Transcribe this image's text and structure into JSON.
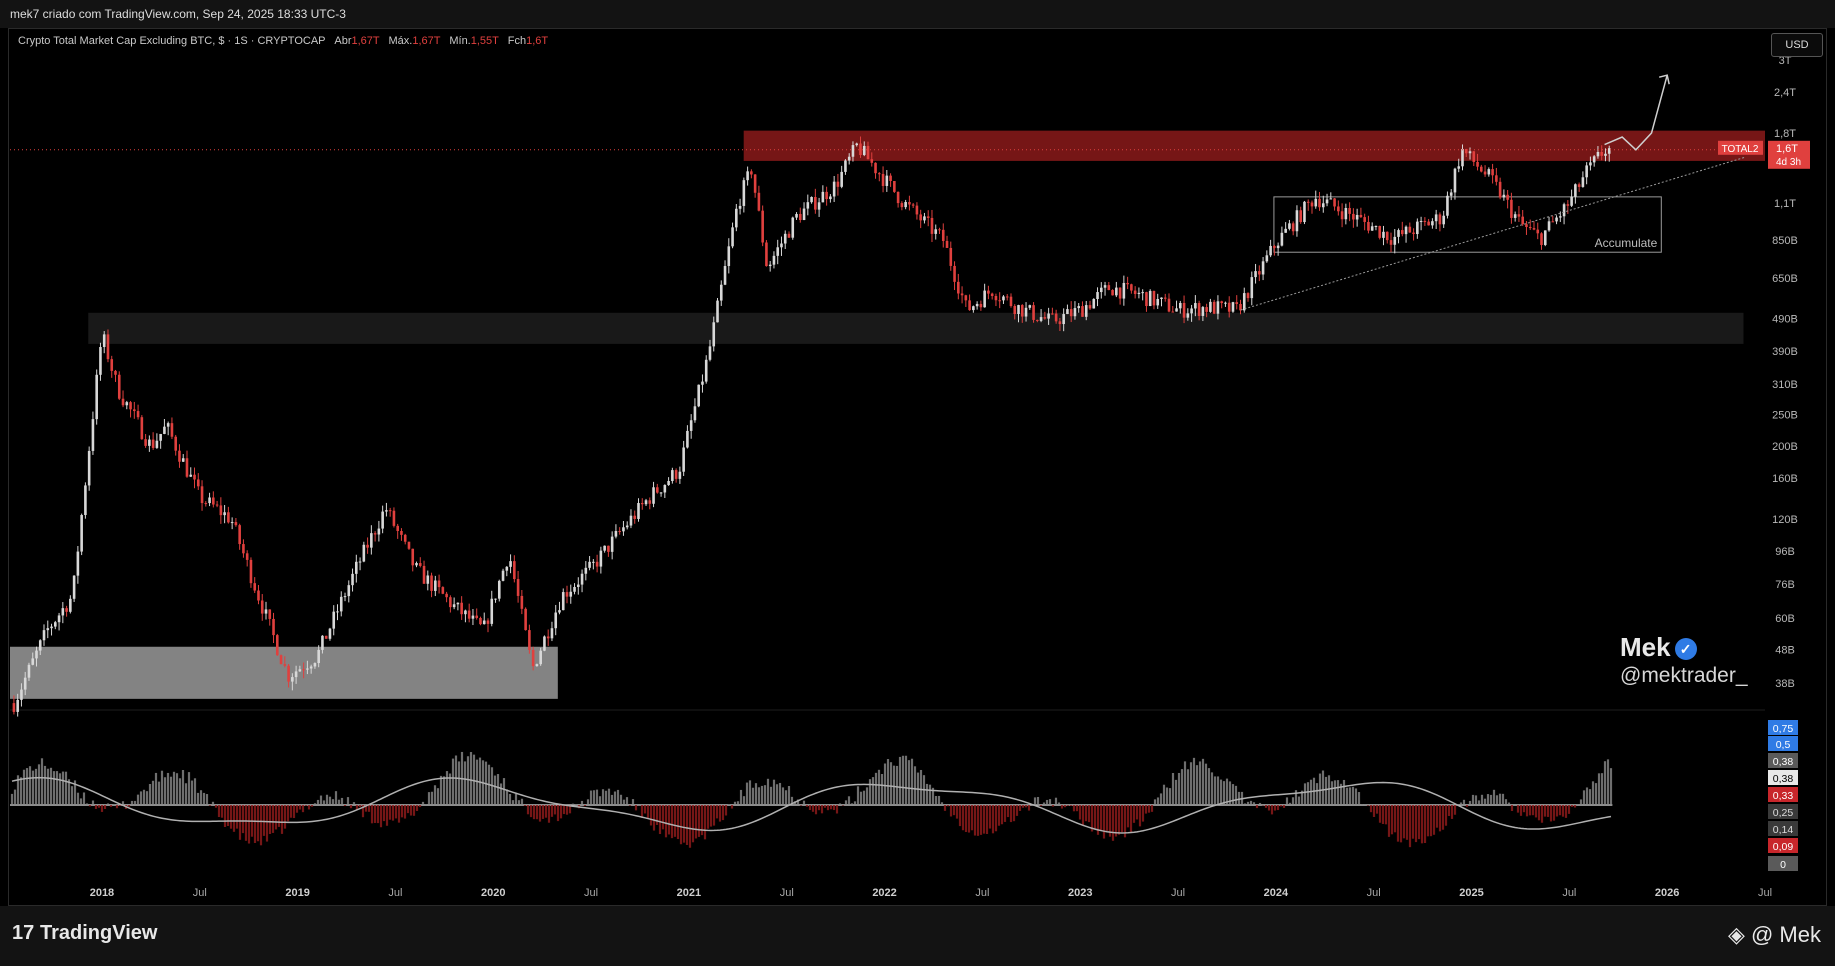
{
  "header": {
    "caption": "mek7 criado com TradingView.com, Sep 24, 2025 18:33 UTC-3"
  },
  "symbol": {
    "name": "Crypto Total Market Cap Excluding BTC, $ · 1S · CRYPTOCAP",
    "open_label": "Abr",
    "open": "1,67T",
    "high_label": "Máx.",
    "high": "1,67T",
    "low_label": "Mín.",
    "low": "1,55T",
    "close_label": "Fch",
    "close": "1,6T"
  },
  "currency_button": "USD",
  "price_tag": {
    "ticker": "TOTAL2",
    "value": "1,6T",
    "countdown": "4d 3h"
  },
  "annotation": {
    "accumulate": "Accumulate"
  },
  "watermark": {
    "name": "Mek",
    "handle": "@mektrader_"
  },
  "footer": {
    "logo": "TradingView",
    "signature": "@ Mek"
  },
  "colors": {
    "up": "#d8d8d8",
    "down": "#e0403e",
    "zone_red": "#8b1a1a",
    "accent_blue": "#2f7be5"
  },
  "chart_data": {
    "type": "candlestick",
    "scale": "log",
    "y_tick_labels": [
      "3T",
      "2,4T",
      "1,8T",
      "1,1T",
      "850B",
      "650B",
      "490B",
      "390B",
      "310B",
      "250B",
      "200B",
      "160B",
      "120B",
      "96B",
      "76B",
      "60B",
      "48B",
      "38B"
    ],
    "y_tick_values": [
      3000,
      2400,
      1800,
      1100,
      850,
      650,
      490,
      390,
      310,
      250,
      200,
      160,
      120,
      96,
      76,
      60,
      48,
      38
    ],
    "x_tick_labels": [
      "2018",
      "Jul",
      "2019",
      "Jul",
      "2020",
      "Jul",
      "2021",
      "Jul",
      "2022",
      "Jul",
      "2023",
      "Jul",
      "2024",
      "Jul",
      "2025",
      "Jul",
      "2026",
      "Jul"
    ],
    "x_tick_values": [
      2018.0,
      2018.5,
      2019.0,
      2019.5,
      2020.0,
      2020.5,
      2021.0,
      2021.5,
      2022.0,
      2022.5,
      2023.0,
      2023.5,
      2024.0,
      2024.5,
      2025.0,
      2025.5,
      2026.0,
      2026.5
    ],
    "x_range": [
      2017.53,
      2026.5
    ],
    "price_path": [
      [
        2017.55,
        33
      ],
      [
        2017.72,
        55
      ],
      [
        2017.85,
        70
      ],
      [
        2018.0,
        440
      ],
      [
        2018.08,
        300
      ],
      [
        2018.25,
        200
      ],
      [
        2018.33,
        230
      ],
      [
        2018.5,
        140
      ],
      [
        2018.66,
        120
      ],
      [
        2018.8,
        70
      ],
      [
        2018.95,
        40
      ],
      [
        2019.1,
        46
      ],
      [
        2019.3,
        85
      ],
      [
        2019.45,
        130
      ],
      [
        2019.6,
        85
      ],
      [
        2019.8,
        65
      ],
      [
        2019.95,
        55
      ],
      [
        2020.08,
        95
      ],
      [
        2020.2,
        42
      ],
      [
        2020.35,
        70
      ],
      [
        2020.5,
        85
      ],
      [
        2020.65,
        110
      ],
      [
        2020.8,
        140
      ],
      [
        2020.95,
        170
      ],
      [
        2021.1,
        380
      ],
      [
        2021.25,
        1100
      ],
      [
        2021.32,
        1400
      ],
      [
        2021.4,
        700
      ],
      [
        2021.55,
        1000
      ],
      [
        2021.75,
        1250
      ],
      [
        2021.86,
        1650
      ],
      [
        2022.0,
        1300
      ],
      [
        2022.1,
        1100
      ],
      [
        2022.3,
        850
      ],
      [
        2022.42,
        520
      ],
      [
        2022.55,
        600
      ],
      [
        2022.68,
        530
      ],
      [
        2022.85,
        480
      ],
      [
        2023.0,
        520
      ],
      [
        2023.15,
        610
      ],
      [
        2023.3,
        580
      ],
      [
        2023.5,
        520
      ],
      [
        2023.65,
        530
      ],
      [
        2023.8,
        520
      ],
      [
        2024.0,
        830
      ],
      [
        2024.2,
        1150
      ],
      [
        2024.4,
        1000
      ],
      [
        2024.6,
        860
      ],
      [
        2024.85,
        1000
      ],
      [
        2024.95,
        1600
      ],
      [
        2025.1,
        1300
      ],
      [
        2025.25,
        950
      ],
      [
        2025.35,
        860
      ],
      [
        2025.5,
        1100
      ],
      [
        2025.58,
        1350
      ],
      [
        2025.68,
        1600
      ],
      [
        2025.72,
        1600
      ]
    ],
    "sample_noise_percent": 6,
    "zones": [
      {
        "kind": "resistance",
        "x": [
          2021.28,
          2026.5
        ],
        "y": [
          1480,
          1830
        ]
      },
      {
        "kind": "support",
        "x": [
          2017.93,
          2026.39
        ],
        "y": [
          410,
          510
        ]
      },
      {
        "kind": "demand",
        "x": [
          2017.53,
          2020.33
        ],
        "y": [
          34,
          49
        ]
      },
      {
        "kind": "accumulate",
        "x": [
          2023.99,
          2025.97
        ],
        "y": [
          780,
          1150
        ]
      }
    ],
    "trendline": {
      "from": [
        2023.82,
        520
      ],
      "to": [
        2026.4,
        1520
      ]
    },
    "projection": [
      [
        2025.68,
        1660
      ],
      [
        2025.77,
        1750
      ],
      [
        2025.84,
        1600
      ],
      [
        2025.92,
        1800
      ],
      [
        2026.0,
        2700
      ]
    ],
    "last_price": 1600,
    "oscillator": {
      "right_labels": [
        "0,75",
        "0,5",
        "0,38",
        "0,38",
        "0,33",
        "0,25",
        "0,14",
        "0,09",
        "0"
      ],
      "x_end": 2025.72
    }
  }
}
